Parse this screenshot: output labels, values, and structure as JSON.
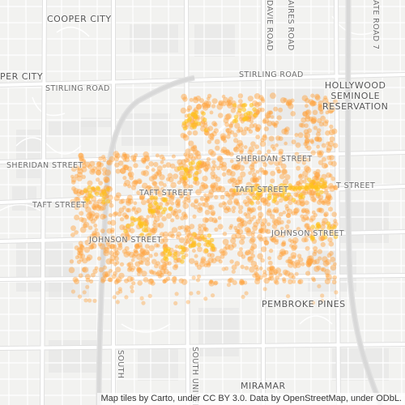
{
  "map": {
    "type": "heat-density",
    "colors": {
      "background": "#f2f2f0",
      "road": "#ffffff",
      "road_outline": "#e0e0e0",
      "block": "#e4e4e4",
      "highway": "#d8d8d8",
      "point": "#ffa23c",
      "point_hot": "#ffc21a"
    },
    "labels": {
      "cooper_city": "COOPER CITY",
      "pembroke_pines_top": "PER CITY",
      "stirling_road_w": "STIRLING ROAD",
      "stirling_road_e": "STIRLING ROAD",
      "hollywood_seminole": "HOLLYWOOD\nSEMINOLE\nRESERVATION",
      "sheridan_street_w": "SHERIDAN STREET",
      "sheridan_street_e": "SHERIDAN STREET",
      "taft_street_w": "TAFT STREET",
      "taft_street_c": "TAFT STREET",
      "taft_street_m": "TAFT STREET",
      "taft_street_e": "T STREET",
      "johnson_street_w": "JOHNSON STREET",
      "johnson_street_e": "JOHNSON STREET",
      "pembroke_pines": "PEMBROKE PINES",
      "miramar": "MIRAMAR",
      "davie_road": "DAVIE ROAD",
      "university_road": "AIRES ROAD",
      "state_road": "ATE ROAD 7",
      "south_road_w": "SOUTH",
      "south_road_c": "SOUTH UNIVER"
    },
    "attribution": "Map tiles by Carto, under CC BY 3.0. Data by OpenStreetMap, under ODbL."
  }
}
